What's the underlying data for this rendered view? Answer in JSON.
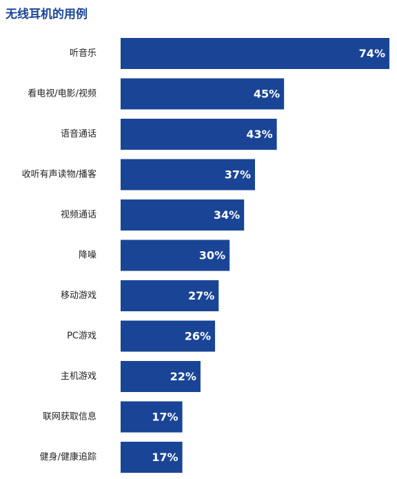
{
  "chart_data": {
    "type": "bar",
    "orientation": "horizontal",
    "title": "无线耳机的用例",
    "categories": [
      "听音乐",
      "看电视/电影/视频",
      "语音通话",
      "收听有声读物/播客",
      "视频通话",
      "降噪",
      "移动游戏",
      "PC游戏",
      "主机游戏",
      "联网获取信息",
      "健身/健康追踪"
    ],
    "values": [
      74,
      45,
      43,
      37,
      34,
      30,
      27,
      26,
      22,
      17,
      17
    ],
    "value_labels": [
      "74%",
      "45%",
      "43%",
      "37%",
      "34%",
      "30%",
      "27%",
      "26%",
      "22%",
      "17%",
      "17%"
    ],
    "unit": "%",
    "xlabel": "",
    "ylabel": "",
    "grid": false,
    "legend": "none",
    "colors": {
      "bar": "#1a4596",
      "title": "#1a4596",
      "label": "#222222",
      "value_label": "#ffffff"
    }
  }
}
